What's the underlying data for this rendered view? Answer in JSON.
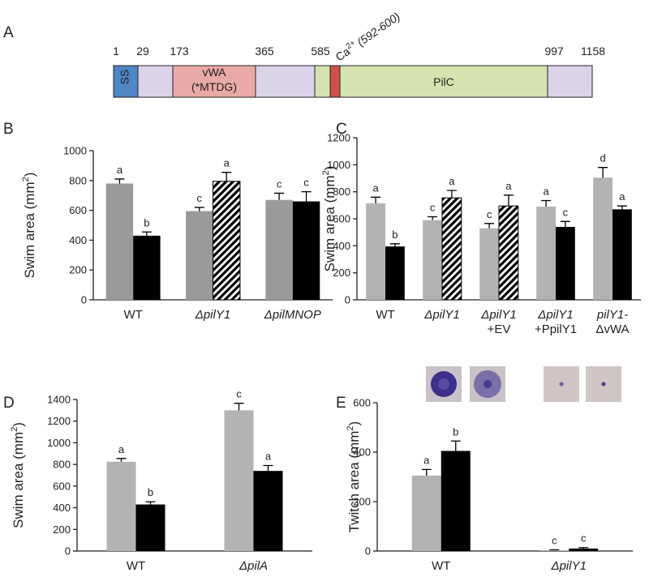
{
  "diagram": {
    "panel_label": "A",
    "positions": [
      "1",
      "29",
      "173",
      "365",
      "585",
      "997",
      "1158"
    ],
    "ss": "SS",
    "vwa": [
      "vWA",
      "(*MTDG)"
    ],
    "pilc": "PilC",
    "calcium": {
      "base": "Ca",
      "sup": "2+",
      "range": "(592-600)"
    }
  },
  "chart_data": [
    {
      "type": "bar",
      "panel_label": "B",
      "ylabel": {
        "text": "Swim area (mm",
        "sup": "2",
        "end": ")"
      },
      "categories": [
        [
          "WT"
        ],
        [
          "ΔpilY1"
        ],
        [
          "ΔpilMNOP"
        ]
      ],
      "ylim": [
        0,
        1000
      ],
      "yticks": [
        0,
        200,
        400,
        600,
        800,
        1000
      ],
      "series": [
        {
          "color": "#9a9a9c",
          "values": [
            780,
            595,
            670
          ],
          "errors": [
            30,
            25,
            45
          ],
          "labels": [
            "a",
            "c",
            "c"
          ],
          "patterns": [
            "solid",
            "solid",
            "solid"
          ]
        },
        {
          "color": "#000000",
          "values": [
            430,
            795,
            660
          ],
          "errors": [
            25,
            60,
            65
          ],
          "labels": [
            "b",
            "a",
            "c"
          ],
          "patterns": [
            "solid",
            "hatched",
            "solid"
          ]
        }
      ]
    },
    {
      "type": "bar",
      "panel_label": "C",
      "ylabel": {
        "text": "Swim area (mm",
        "sup": "2",
        "end": ")"
      },
      "categories": [
        [
          "WT"
        ],
        [
          "ΔpilY1"
        ],
        [
          "ΔpilY1",
          "+EV"
        ],
        [
          "ΔpilY1",
          "+PpilY1"
        ],
        [
          "pilY1-",
          "ΔvWA"
        ]
      ],
      "ylim": [
        0,
        1200
      ],
      "yticks": [
        0,
        200,
        400,
        600,
        800,
        1000,
        1200
      ],
      "series": [
        {
          "color": "#b3b3b5",
          "values": [
            715,
            590,
            530,
            690,
            905
          ],
          "errors": [
            45,
            25,
            35,
            45,
            75
          ],
          "labels": [
            "a",
            "c",
            "c",
            "a",
            "d"
          ],
          "patterns": [
            "solid",
            "solid",
            "solid",
            "solid",
            "solid"
          ]
        },
        {
          "color": "#000000",
          "values": [
            395,
            755,
            695,
            540,
            670
          ],
          "errors": [
            20,
            55,
            80,
            40,
            25
          ],
          "labels": [
            "b",
            "a",
            "a",
            "c",
            "a"
          ],
          "patterns": [
            "solid",
            "hatched",
            "hatched",
            "solid",
            "solid"
          ]
        }
      ]
    },
    {
      "type": "bar",
      "panel_label": "D",
      "ylabel": {
        "text": "Swim area (mm",
        "sup": "2",
        "end": ")"
      },
      "categories": [
        [
          "WT"
        ],
        [
          "ΔpilA"
        ]
      ],
      "ylim": [
        0,
        1400
      ],
      "yticks": [
        0,
        200,
        400,
        600,
        800,
        1000,
        1200,
        1400
      ],
      "series": [
        {
          "color": "#b3b3b5",
          "values": [
            825,
            1300
          ],
          "errors": [
            30,
            65
          ],
          "labels": [
            "a",
            "c"
          ],
          "patterns": [
            "solid",
            "solid"
          ]
        },
        {
          "color": "#000000",
          "values": [
            430,
            740
          ],
          "errors": [
            25,
            50
          ],
          "labels": [
            "b",
            "a"
          ],
          "patterns": [
            "solid",
            "solid"
          ]
        }
      ]
    },
    {
      "type": "bar",
      "panel_label": "E",
      "ylabel": {
        "text": "Twitch area (mm",
        "sup": "2",
        "end": ")"
      },
      "categories": [
        [
          "WT"
        ],
        [
          "ΔpilY1"
        ]
      ],
      "ylim": [
        0,
        600
      ],
      "yticks": [
        0,
        200,
        400,
        600
      ],
      "series": [
        {
          "color": "#b3b3b5",
          "values": [
            305,
            3
          ],
          "errors": [
            25,
            2
          ],
          "labels": [
            "a",
            "c"
          ],
          "patterns": [
            "solid",
            "solid"
          ]
        },
        {
          "color": "#000000",
          "values": [
            405,
            10
          ],
          "errors": [
            40,
            4
          ],
          "labels": [
            "b",
            "c"
          ],
          "patterns": [
            "solid",
            "solid"
          ]
        }
      ]
    }
  ]
}
